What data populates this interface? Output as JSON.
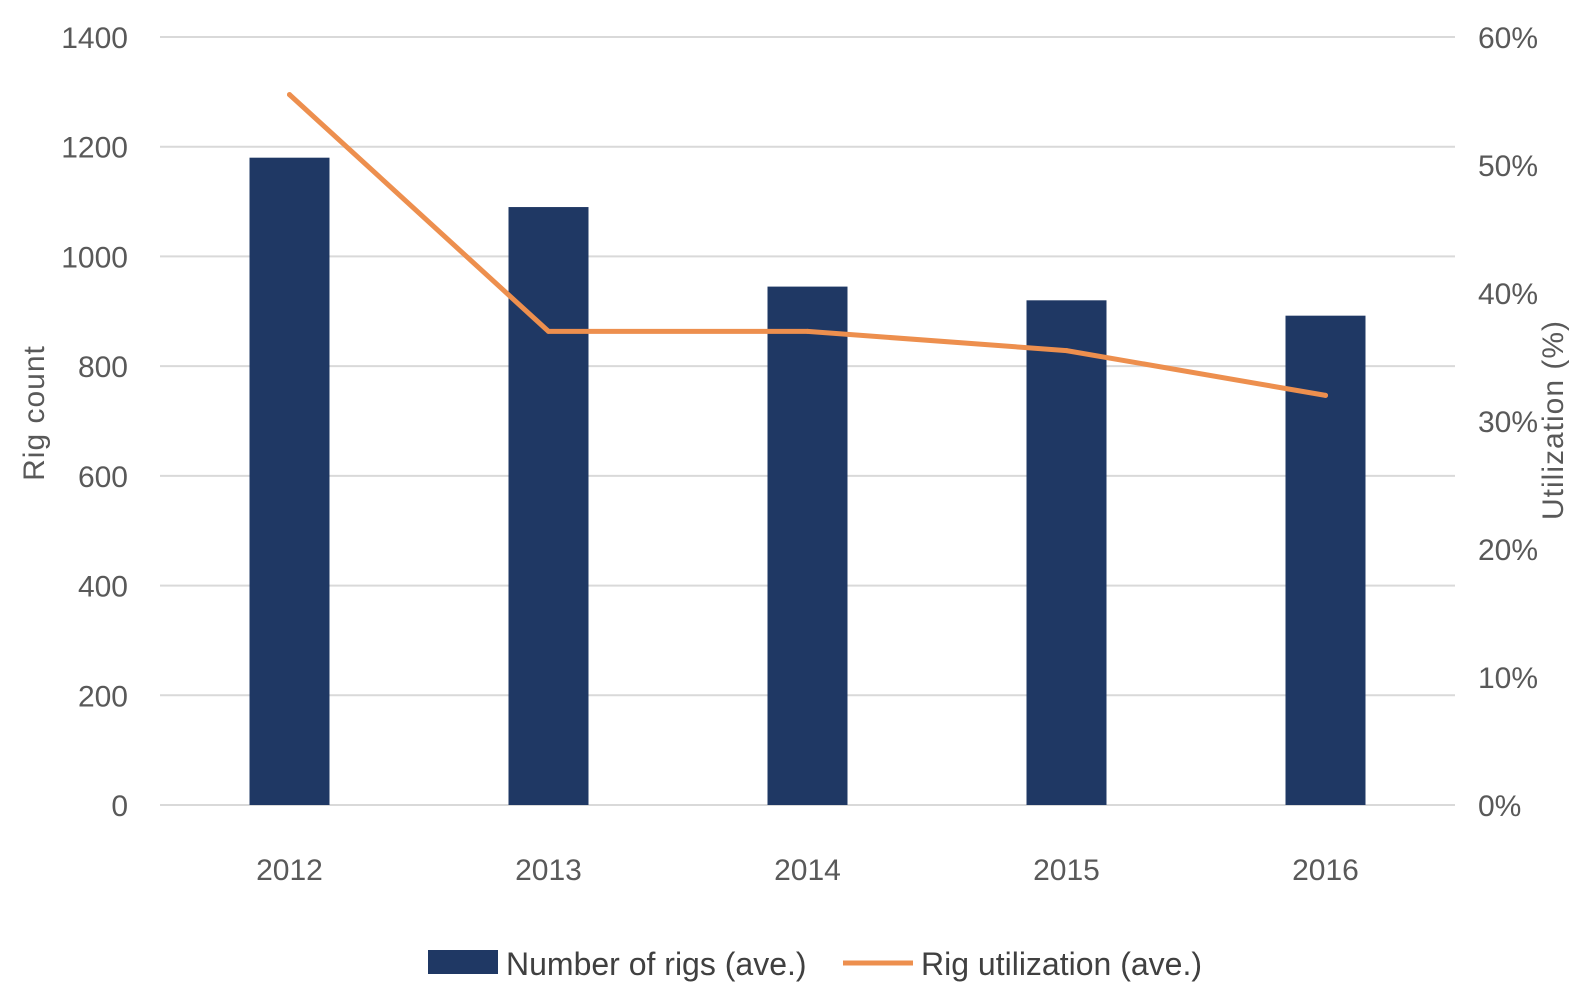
{
  "chart_data": {
    "type": "bar",
    "title": "",
    "categories": [
      "2012",
      "2013",
      "2014",
      "2015",
      "2016"
    ],
    "series": [
      {
        "name": "Number of rigs (ave.)",
        "type": "bar",
        "axis": "left",
        "color": "#1f3864",
        "values": [
          1180,
          1090,
          945,
          920,
          892
        ]
      },
      {
        "name": "Rig utilization (ave.)",
        "type": "line",
        "axis": "right",
        "color": "#ed8f4e",
        "values": [
          55.5,
          37,
          37,
          35.5,
          32
        ]
      }
    ],
    "ylabel": "Rig count",
    "ylabel_right": "Utilization (%)",
    "ylim": [
      0,
      1400
    ],
    "yticks": [
      "0",
      "200",
      "400",
      "600",
      "800",
      "1000",
      "1200",
      "1400"
    ],
    "y2lim": [
      0,
      60
    ],
    "y2ticks": [
      "0%",
      "10%",
      "20%",
      "30%",
      "40%",
      "50%",
      "60%"
    ],
    "grid": true,
    "legend_position": "bottom"
  }
}
